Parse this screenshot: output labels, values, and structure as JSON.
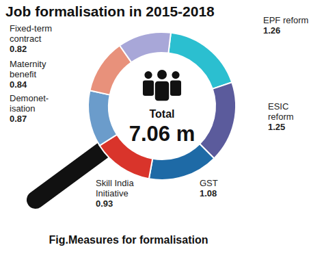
{
  "chart_data": {
    "type": "donut",
    "title": "Job formalisation in 2015-2018",
    "caption": "Fig.Measures for formalisation",
    "categories": [
      "EPF reform",
      "ESIC\nreform",
      "GST",
      "Skill India\nInitiative",
      "Demonet-\nisation",
      "Maternity\nbenefit",
      "Fixed-term\ncontract"
    ],
    "values": [
      1.26,
      1.25,
      1.08,
      0.93,
      0.87,
      0.84,
      0.82
    ],
    "colors": [
      "#2bbfd0",
      "#5b5b9c",
      "#1e6aa6",
      "#d9342b",
      "#6b9ccb",
      "#e8917b",
      "#a8a7d8"
    ],
    "data_labels": true,
    "annotations": [
      "Total",
      "7.06 m"
    ]
  }
}
